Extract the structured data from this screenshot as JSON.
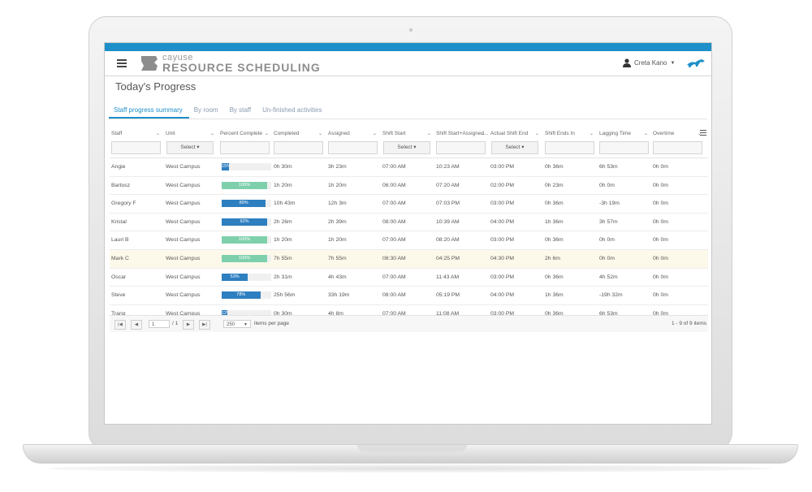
{
  "app": {
    "logo_top": "cayuse",
    "logo_main": "RESOURCE SCHEDULING",
    "user_name": "Creta Kano",
    "brand_color": "#1d8fc9",
    "icons": [
      "menu-icon",
      "user-icon",
      "horse-logo-icon",
      "caret-down-icon",
      "column-menu-icon"
    ]
  },
  "page": {
    "title": "Today's Progress"
  },
  "tabs": [
    {
      "label": "Staff progress summary",
      "active": true
    },
    {
      "label": "By room",
      "active": false
    },
    {
      "label": "By staff",
      "active": false
    },
    {
      "label": "Un-finished activities",
      "active": false
    }
  ],
  "columns": [
    {
      "label": "Staff",
      "filter": ""
    },
    {
      "label": "Unit",
      "filter": "Select"
    },
    {
      "label": "Percent Complete",
      "filter": ""
    },
    {
      "label": "Completed",
      "filter": ""
    },
    {
      "label": "Assigned",
      "filter": ""
    },
    {
      "label": "Shift Start",
      "filter": "Select"
    },
    {
      "label": "Shift Start+Assigned...",
      "filter": ""
    },
    {
      "label": "Actual Shift End",
      "filter": "Select"
    },
    {
      "label": "Shift Ends In",
      "filter": ""
    },
    {
      "label": "Lagging Time",
      "filter": ""
    },
    {
      "label": "Overtime",
      "filter": ""
    }
  ],
  "rows": [
    {
      "staff": "Angie",
      "unit": "West Campus",
      "pct": 15,
      "pct_label": "15%",
      "completed": "0h 30m",
      "assigned": "3h 23m",
      "shift_start": "07:00 AM",
      "start_assigned": "10:23 AM",
      "actual_end": "03:00 PM",
      "ends_in": "0h 36m",
      "lagging": "6h 53m",
      "overtime": "0h 0m",
      "highlight": false
    },
    {
      "staff": "Bartosz",
      "unit": "West Campus",
      "pct": 100,
      "pct_label": "100%",
      "completed": "1h 20m",
      "assigned": "1h 20m",
      "shift_start": "06:00 AM",
      "start_assigned": "07:20 AM",
      "actual_end": "02:00 PM",
      "ends_in": "0h 23m",
      "lagging": "0h 0m",
      "overtime": "0h 0m",
      "highlight": false
    },
    {
      "staff": "Gregory F",
      "unit": "West Campus",
      "pct": 89,
      "pct_label": "89%",
      "completed": "10h 43m",
      "assigned": "12h 3m",
      "shift_start": "07:00 AM",
      "start_assigned": "07:03 PM",
      "actual_end": "03:00 PM",
      "ends_in": "0h 36m",
      "lagging": "-3h 19m",
      "overtime": "0h 0m",
      "highlight": false
    },
    {
      "staff": "Kristal",
      "unit": "West Campus",
      "pct": 92,
      "pct_label": "92%",
      "completed": "2h 26m",
      "assigned": "2h 39m",
      "shift_start": "08:00 AM",
      "start_assigned": "10:39 AM",
      "actual_end": "04:00 PM",
      "ends_in": "1h 36m",
      "lagging": "3h 57m",
      "overtime": "0h 0m",
      "highlight": false
    },
    {
      "staff": "Lauri B",
      "unit": "West Campus",
      "pct": 100,
      "pct_label": "100%",
      "completed": "1h 20m",
      "assigned": "1h 20m",
      "shift_start": "07:00 AM",
      "start_assigned": "08:20 AM",
      "actual_end": "03:00 PM",
      "ends_in": "0h 36m",
      "lagging": "0h 0m",
      "overtime": "0h 0m",
      "highlight": false
    },
    {
      "staff": "Mark C",
      "unit": "West Campus",
      "pct": 100,
      "pct_label": "100%",
      "completed": "7h 55m",
      "assigned": "7h 55m",
      "shift_start": "08:30 AM",
      "start_assigned": "04:25 PM",
      "actual_end": "04:30 PM",
      "ends_in": "2h 6m",
      "lagging": "0h 0m",
      "overtime": "0h 0m",
      "highlight": true
    },
    {
      "staff": "Oscar",
      "unit": "West Campus",
      "pct": 53,
      "pct_label": "53%",
      "completed": "2h 31m",
      "assigned": "4h 43m",
      "shift_start": "07:00 AM",
      "start_assigned": "11:43 AM",
      "actual_end": "03:00 PM",
      "ends_in": "0h 36m",
      "lagging": "4h 52m",
      "overtime": "0h 0m",
      "highlight": false
    },
    {
      "staff": "Steve",
      "unit": "West Campus",
      "pct": 78,
      "pct_label": "78%",
      "completed": "25h 56m",
      "assigned": "33h 19m",
      "shift_start": "08:00 AM",
      "start_assigned": "05:19 PM",
      "actual_end": "04:00 PM",
      "ends_in": "1h 36m",
      "lagging": "-19h 32m",
      "overtime": "0h 0m",
      "highlight": false
    },
    {
      "staff": "Trang",
      "unit": "West Campus",
      "pct": 12,
      "pct_label": "12%",
      "completed": "0h 30m",
      "assigned": "4h 8m",
      "shift_start": "07:00 AM",
      "start_assigned": "11:08 AM",
      "actual_end": "03:00 PM",
      "ends_in": "0h 36m",
      "lagging": "6h 53m",
      "overtime": "0h 0m",
      "highlight": false
    }
  ],
  "bar_colors": {
    "complete": "#7ed0ad",
    "partial": "#2e7fc0"
  },
  "pager": {
    "buttons": [
      "|◀",
      "◀",
      "▶",
      "▶|"
    ],
    "page": "1",
    "of_pages": "/ 1",
    "page_size": "250",
    "items_per_page": "items per page",
    "summary": "1 - 9 of 9 items"
  }
}
